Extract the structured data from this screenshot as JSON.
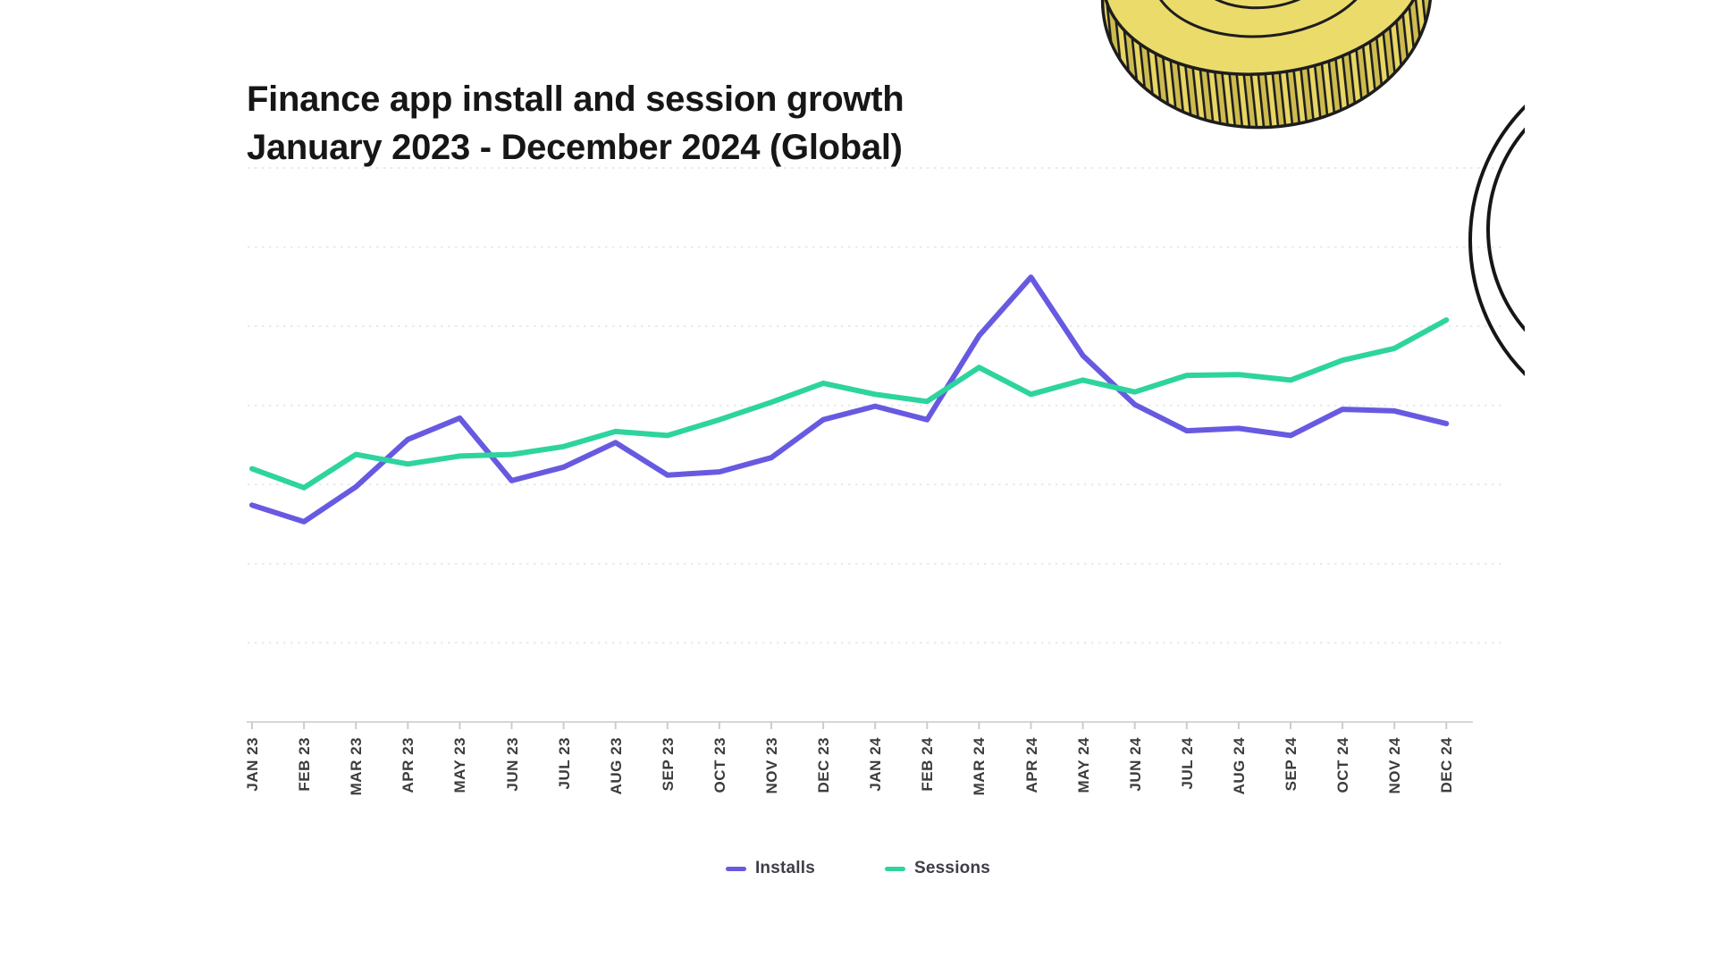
{
  "header": {
    "title_line1": "Finance app install and session growth",
    "title_line2": "January 2023 - December 2024 (Global)"
  },
  "legend": {
    "items": [
      {
        "label": "Installs",
        "color": "#675AE1"
      },
      {
        "label": "Sessions",
        "color": "#2DD49E"
      }
    ]
  },
  "chart_data": {
    "type": "line",
    "title": "Finance app install and session growth January 2023 - December 2024 (Global)",
    "categories": [
      "JAN 23",
      "FEB 23",
      "MAR 23",
      "APR 23",
      "MAY 23",
      "JUN 23",
      "JUL 23",
      "AUG 23",
      "SEP 23",
      "OCT 23",
      "NOV 23",
      "DEC 23",
      "JAN 24",
      "FEB 24",
      "MAR 24",
      "APR 24",
      "MAY 24",
      "JUN 24",
      "JUL 24",
      "AUG 24",
      "SEP 24",
      "OCT 24",
      "NOV 24",
      "DEC 24"
    ],
    "series": [
      {
        "name": "Installs",
        "color": "#675AE1",
        "values": [
          27.4,
          25.3,
          29.7,
          35.7,
          38.4,
          30.5,
          32.2,
          35.3,
          31.2,
          31.6,
          33.4,
          38.2,
          39.9,
          38.2,
          48.8,
          56.2,
          46.3,
          40.1,
          36.8,
          37.1,
          36.2,
          39.5,
          39.3,
          37.7
        ]
      },
      {
        "name": "Sessions",
        "color": "#2DD49E",
        "values": [
          32.0,
          29.6,
          33.8,
          32.6,
          33.6,
          33.8,
          34.8,
          36.7,
          36.2,
          38.2,
          40.4,
          42.8,
          41.4,
          40.5,
          44.8,
          41.4,
          43.2,
          41.7,
          43.8,
          43.9,
          43.2,
          45.7,
          47.2,
          50.8
        ]
      }
    ],
    "xlabel": "",
    "ylabel": "",
    "y_axis_labels_visible": false,
    "ylim": [
      0,
      70
    ],
    "gridline_step": 10,
    "gridlines": "horizontal-dotted",
    "legend_position": "bottom-center",
    "note": "Y axis is unlabeled in the source graphic; values are a relative index (10 units per dotted gridline, baseline = x axis)."
  },
  "decorations": {
    "top_right": "hand-drawn gold coin, ridged edge, clipped by top of image",
    "right_edge": "outlined coin (two concentric black arcs) clipped at right",
    "coin_fill": "#EBDB6B",
    "coin_ridge_dark": "#CDBB4E",
    "outline_color": "#1D1D1D"
  },
  "style": {
    "background": "#FFFFFF",
    "gridline_color": "#E9E9E9",
    "axis_color": "#D6D6D6",
    "tick_color": "#CCCCCC"
  }
}
